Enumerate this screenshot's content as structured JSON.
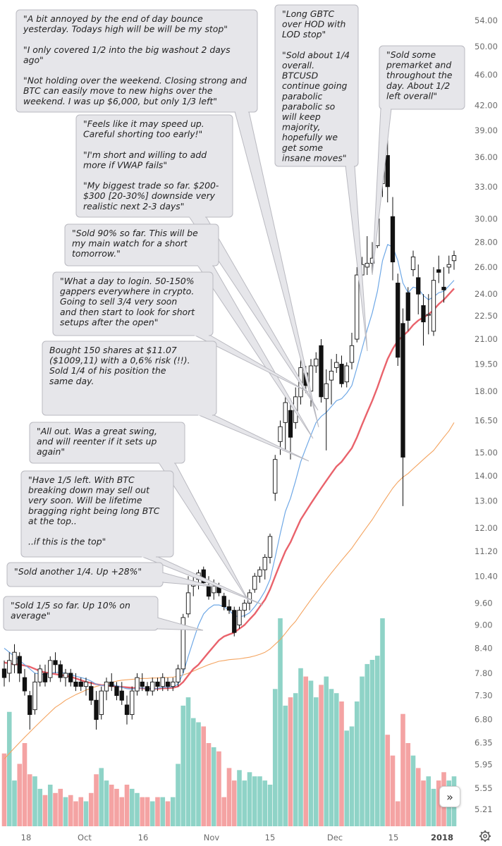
{
  "chart_data": {
    "type": "candlestick",
    "price_axis_ticks": [
      "54.00",
      "50.00",
      "46.00",
      "42.00",
      "39.00",
      "36.00",
      "33.00",
      "30.00",
      "28.00",
      "26.00",
      "24.00",
      "22.50",
      "21.00",
      "19.50",
      "18.00",
      "16.50",
      "15.00",
      "14.00",
      "13.00",
      "12.00",
      "11.20",
      "10.40",
      "9.60",
      "9.00",
      "8.40",
      "7.80",
      "7.30",
      "6.80",
      "6.35",
      "5.95",
      "5.55",
      "5.21"
    ],
    "time_axis_labels": [
      {
        "label": "18",
        "bold": false
      },
      {
        "label": "Oct",
        "bold": false
      },
      {
        "label": "16",
        "bold": false
      },
      {
        "label": "Nov",
        "bold": false
      },
      {
        "label": "15",
        "bold": false
      },
      {
        "label": "Dec",
        "bold": false
      },
      {
        "label": "15",
        "bold": false
      },
      {
        "label": "2018",
        "bold": true
      }
    ],
    "log_scale": true,
    "candles": [
      {
        "o": 7.9,
        "h": 8.1,
        "l": 7.5,
        "c": 7.7
      },
      {
        "o": 7.8,
        "h": 8.3,
        "l": 7.6,
        "c": 8.1
      },
      {
        "o": 8.0,
        "h": 8.5,
        "l": 7.8,
        "c": 8.3
      },
      {
        "o": 8.2,
        "h": 8.3,
        "l": 7.6,
        "c": 7.8
      },
      {
        "o": 7.7,
        "h": 7.9,
        "l": 7.3,
        "c": 7.4
      },
      {
        "o": 7.3,
        "h": 7.4,
        "l": 6.6,
        "c": 6.9
      },
      {
        "o": 7.0,
        "h": 7.8,
        "l": 6.9,
        "c": 7.6
      },
      {
        "o": 7.6,
        "h": 8.0,
        "l": 7.5,
        "c": 7.9
      },
      {
        "o": 7.8,
        "h": 8.0,
        "l": 7.5,
        "c": 7.6
      },
      {
        "o": 7.7,
        "h": 8.2,
        "l": 7.6,
        "c": 8.1
      },
      {
        "o": 8.1,
        "h": 8.3,
        "l": 7.8,
        "c": 8.0
      },
      {
        "o": 8.0,
        "h": 8.1,
        "l": 7.6,
        "c": 7.7
      },
      {
        "o": 7.7,
        "h": 7.9,
        "l": 7.5,
        "c": 7.8
      },
      {
        "o": 7.8,
        "h": 7.9,
        "l": 7.5,
        "c": 7.6
      },
      {
        "o": 7.6,
        "h": 7.8,
        "l": 7.4,
        "c": 7.5
      },
      {
        "o": 7.6,
        "h": 7.7,
        "l": 7.4,
        "c": 7.5
      },
      {
        "o": 7.5,
        "h": 7.7,
        "l": 7.3,
        "c": 7.6
      },
      {
        "o": 7.5,
        "h": 7.6,
        "l": 7.1,
        "c": 7.2
      },
      {
        "o": 7.2,
        "h": 7.4,
        "l": 6.6,
        "c": 6.8
      },
      {
        "o": 6.9,
        "h": 7.5,
        "l": 6.8,
        "c": 7.4
      },
      {
        "o": 7.4,
        "h": 7.7,
        "l": 7.2,
        "c": 7.6
      },
      {
        "o": 7.6,
        "h": 7.8,
        "l": 7.4,
        "c": 7.5
      },
      {
        "o": 7.5,
        "h": 7.6,
        "l": 7.2,
        "c": 7.3
      },
      {
        "o": 7.4,
        "h": 7.6,
        "l": 7.1,
        "c": 7.2
      },
      {
        "o": 7.1,
        "h": 7.3,
        "l": 6.7,
        "c": 6.9
      },
      {
        "o": 6.9,
        "h": 7.5,
        "l": 6.8,
        "c": 7.4
      },
      {
        "o": 7.4,
        "h": 7.8,
        "l": 7.3,
        "c": 7.7
      },
      {
        "o": 7.6,
        "h": 7.8,
        "l": 7.4,
        "c": 7.5
      },
      {
        "o": 7.5,
        "h": 7.6,
        "l": 7.3,
        "c": 7.4
      },
      {
        "o": 7.4,
        "h": 7.7,
        "l": 7.3,
        "c": 7.6
      },
      {
        "o": 7.6,
        "h": 7.7,
        "l": 7.4,
        "c": 7.5
      },
      {
        "o": 7.5,
        "h": 7.8,
        "l": 7.4,
        "c": 7.7
      },
      {
        "o": 7.6,
        "h": 7.7,
        "l": 7.4,
        "c": 7.5
      },
      {
        "o": 7.5,
        "h": 7.7,
        "l": 7.4,
        "c": 7.6
      },
      {
        "o": 7.6,
        "h": 8.0,
        "l": 7.5,
        "c": 7.9
      },
      {
        "o": 7.9,
        "h": 9.3,
        "l": 7.8,
        "c": 9.2
      },
      {
        "o": 9.3,
        "h": 10.4,
        "l": 9.2,
        "c": 9.9
      },
      {
        "o": 10.1,
        "h": 10.4,
        "l": 9.8,
        "c": 10.2
      },
      {
        "o": 10.3,
        "h": 10.6,
        "l": 10.0,
        "c": 10.5
      },
      {
        "o": 10.6,
        "h": 10.7,
        "l": 10.1,
        "c": 10.2
      },
      {
        "o": 10.1,
        "h": 10.4,
        "l": 9.7,
        "c": 9.8
      },
      {
        "o": 9.9,
        "h": 10.3,
        "l": 9.7,
        "c": 10.1
      },
      {
        "o": 10.1,
        "h": 10.2,
        "l": 9.8,
        "c": 9.9
      },
      {
        "o": 9.8,
        "h": 9.9,
        "l": 9.4,
        "c": 9.5
      },
      {
        "o": 9.5,
        "h": 9.7,
        "l": 9.3,
        "c": 9.4
      },
      {
        "o": 9.4,
        "h": 9.5,
        "l": 8.7,
        "c": 8.8
      },
      {
        "o": 9.0,
        "h": 9.5,
        "l": 8.9,
        "c": 9.4
      },
      {
        "o": 9.4,
        "h": 9.7,
        "l": 9.2,
        "c": 9.6
      },
      {
        "o": 9.6,
        "h": 10.0,
        "l": 9.4,
        "c": 9.9
      },
      {
        "o": 10.0,
        "h": 10.5,
        "l": 9.9,
        "c": 10.4
      },
      {
        "o": 10.4,
        "h": 10.7,
        "l": 10.2,
        "c": 10.6
      },
      {
        "o": 10.6,
        "h": 11.1,
        "l": 10.3,
        "c": 11.0
      },
      {
        "o": 11.0,
        "h": 11.8,
        "l": 10.8,
        "c": 11.7
      },
      {
        "o": 13.3,
        "h": 14.9,
        "l": 13.0,
        "c": 14.7
      },
      {
        "o": 15.5,
        "h": 16.5,
        "l": 14.9,
        "c": 16.2
      },
      {
        "o": 16.4,
        "h": 18.0,
        "l": 15.1,
        "c": 17.4
      },
      {
        "o": 17.0,
        "h": 17.6,
        "l": 14.7,
        "c": 15.7
      },
      {
        "o": 16.4,
        "h": 18.2,
        "l": 16.1,
        "c": 17.7
      },
      {
        "o": 17.7,
        "h": 19.8,
        "l": 17.3,
        "c": 19.3
      },
      {
        "o": 19.0,
        "h": 19.4,
        "l": 17.9,
        "c": 18.3
      },
      {
        "o": 18.0,
        "h": 19.8,
        "l": 17.2,
        "c": 19.4
      },
      {
        "o": 19.4,
        "h": 20.2,
        "l": 19.0,
        "c": 19.8
      },
      {
        "o": 20.6,
        "h": 21.0,
        "l": 17.4,
        "c": 17.7
      },
      {
        "o": 17.6,
        "h": 19.2,
        "l": 15.1,
        "c": 18.4
      },
      {
        "o": 18.6,
        "h": 19.8,
        "l": 17.3,
        "c": 19.1
      },
      {
        "o": 19.3,
        "h": 20.1,
        "l": 19.0,
        "c": 19.6
      },
      {
        "o": 19.5,
        "h": 20.0,
        "l": 18.2,
        "c": 18.4
      },
      {
        "o": 18.5,
        "h": 19.6,
        "l": 18.2,
        "c": 19.4
      },
      {
        "o": 19.6,
        "h": 21.4,
        "l": 19.2,
        "c": 20.6
      },
      {
        "o": 21.0,
        "h": 26.0,
        "l": 20.8,
        "c": 25.4
      },
      {
        "o": 25.4,
        "h": 26.8,
        "l": 23.5,
        "c": 26.2
      },
      {
        "o": 26.0,
        "h": 28.5,
        "l": 25.4,
        "c": 26.3
      },
      {
        "o": 26.3,
        "h": 28.0,
        "l": 25.5,
        "c": 26.7
      },
      {
        "o": 27.7,
        "h": 31.0,
        "l": 27.5,
        "c": 30.0
      },
      {
        "o": 33.3,
        "h": 38.5,
        "l": 32.0,
        "c": 37.8
      },
      {
        "o": 36.2,
        "h": 39.5,
        "l": 31.5,
        "c": 33.0
      },
      {
        "o": 30.2,
        "h": 32.0,
        "l": 25.0,
        "c": 26.4
      },
      {
        "o": 24.8,
        "h": 25.5,
        "l": 19.4,
        "c": 19.9
      },
      {
        "o": 22.0,
        "h": 23.0,
        "l": 12.8,
        "c": 14.8
      },
      {
        "o": 24.1,
        "h": 24.5,
        "l": 21.5,
        "c": 22.2
      },
      {
        "o": 25.8,
        "h": 27.3,
        "l": 25.3,
        "c": 26.8
      },
      {
        "o": 25.2,
        "h": 26.2,
        "l": 22.6,
        "c": 24.0
      },
      {
        "o": 23.2,
        "h": 24.0,
        "l": 20.6,
        "c": 22.1
      },
      {
        "o": 22.6,
        "h": 24.0,
        "l": 21.3,
        "c": 22.6
      },
      {
        "o": 21.5,
        "h": 26.0,
        "l": 21.2,
        "c": 25.0
      },
      {
        "o": 25.8,
        "h": 26.9,
        "l": 24.8,
        "c": 25.6
      },
      {
        "o": 24.5,
        "h": 26.0,
        "l": 23.4,
        "c": 24.3
      },
      {
        "o": 26.0,
        "h": 26.9,
        "l": 25.5,
        "c": 26.2
      },
      {
        "o": 26.5,
        "h": 27.3,
        "l": 25.8,
        "c": 26.9
      }
    ],
    "ema_blue": [
      8.4,
      8.3,
      8.2,
      8.1,
      8.0,
      7.9,
      7.8,
      7.78,
      7.77,
      7.8,
      7.82,
      7.82,
      7.8,
      7.77,
      7.73,
      7.7,
      7.67,
      7.62,
      7.55,
      7.52,
      7.53,
      7.54,
      7.52,
      7.48,
      7.45,
      7.44,
      7.46,
      7.47,
      7.45,
      7.44,
      7.46,
      7.48,
      7.48,
      7.49,
      7.55,
      7.8,
      8.2,
      8.6,
      9.0,
      9.3,
      9.45,
      9.55,
      9.55,
      9.5,
      9.4,
      9.25,
      9.22,
      9.25,
      9.33,
      9.5,
      9.7,
      9.95,
      10.3,
      11.0,
      11.8,
      12.6,
      13.1,
      13.8,
      14.6,
      15.2,
      15.8,
      16.4,
      16.7,
      16.9,
      17.2,
      17.5,
      17.6,
      17.9,
      18.3,
      19.3,
      20.4,
      21.6,
      22.7,
      24.2,
      26.5,
      27.8,
      27.6,
      26.5,
      24.8,
      24.1,
      24.5,
      24.4,
      23.9,
      23.6,
      23.8,
      24.1,
      24.2,
      24.6,
      25.0
    ],
    "sma_red": [
      8.05,
      8.03,
      8.01,
      8.0,
      7.98,
      7.95,
      7.9,
      7.85,
      7.82,
      7.8,
      7.78,
      7.76,
      7.74,
      7.72,
      7.68,
      7.64,
      7.6,
      7.58,
      7.55,
      7.53,
      7.52,
      7.51,
      7.5,
      7.49,
      7.48,
      7.47,
      7.46,
      7.46,
      7.45,
      7.45,
      7.45,
      7.46,
      7.46,
      7.47,
      7.5,
      7.6,
      7.75,
      7.9,
      8.0,
      8.15,
      8.3,
      8.45,
      8.6,
      8.7,
      8.75,
      8.8,
      8.9,
      9.0,
      9.15,
      9.3,
      9.5,
      9.7,
      10.0,
      10.4,
      10.8,
      11.2,
      11.5,
      11.9,
      12.3,
      12.6,
      12.9,
      13.2,
      13.5,
      13.8,
      14.1,
      14.4,
      14.6,
      14.9,
      15.2,
      15.7,
      16.3,
      16.9,
      17.5,
      18.2,
      19.0,
      19.8,
      20.4,
      20.9,
      21.2,
      21.5,
      21.9,
      22.2,
      22.4,
      22.6,
      22.9,
      23.3,
      23.6,
      24.0,
      24.4
    ],
    "sma_orange": [
      6.05,
      6.15,
      6.25,
      6.35,
      6.45,
      6.55,
      6.65,
      6.75,
      6.85,
      6.95,
      7.05,
      7.12,
      7.2,
      7.26,
      7.32,
      7.37,
      7.42,
      7.46,
      7.5,
      7.53,
      7.56,
      7.59,
      7.62,
      7.64,
      7.65,
      7.66,
      7.67,
      7.68,
      7.68,
      7.69,
      7.69,
      7.7,
      7.7,
      7.71,
      7.73,
      7.76,
      7.8,
      7.85,
      7.9,
      7.95,
      8.0,
      8.04,
      8.08,
      8.1,
      8.12,
      8.13,
      8.14,
      8.16,
      8.18,
      8.21,
      8.25,
      8.3,
      8.38,
      8.5,
      8.62,
      8.78,
      8.95,
      9.1,
      9.3,
      9.5,
      9.7,
      9.9,
      10.1,
      10.3,
      10.5,
      10.7,
      10.9,
      11.1,
      11.3,
      11.55,
      11.8,
      12.05,
      12.3,
      12.6,
      12.9,
      13.2,
      13.5,
      13.75,
      13.95,
      14.1,
      14.3,
      14.5,
      14.7,
      14.9,
      15.1,
      15.4,
      15.7,
      16.0,
      16.4
    ],
    "volume": [
      35,
      55,
      22,
      30,
      40,
      25,
      24,
      18,
      15,
      20,
      16,
      18,
      14,
      15,
      12,
      14,
      12,
      16,
      25,
      28,
      22,
      20,
      18,
      14,
      20,
      18,
      16,
      14,
      14,
      12,
      14,
      14,
      12,
      14,
      30,
      58,
      62,
      52,
      50,
      48,
      40,
      38,
      36,
      14,
      28,
      22,
      27,
      22,
      26,
      24,
      24,
      22,
      20,
      66,
      100,
      58,
      62,
      64,
      76,
      72,
      70,
      62,
      68,
      72,
      66,
      64,
      60,
      46,
      48,
      60,
      72,
      78,
      80,
      82,
      100,
      44,
      34,
      12,
      54,
      40,
      34,
      28,
      22,
      24,
      18,
      22,
      26,
      22,
      24
    ]
  },
  "annotations": [
    {
      "id": "b1",
      "lines": [
        "\"A bit annoyed by the end of day bounce",
        "yesterday. Todays high will be will be my stop\"",
        "",
        "\"I only covered 1/2 into the big washout 2 days",
        "ago\"",
        "",
        "\"Not holding over the weekend. Closing strong and",
        "BTC can easily move to new highs over the",
        "weekend. I was up $6,000, but only 1/3 left\""
      ]
    },
    {
      "id": "b2",
      "lines": [
        "\"Long GBTC",
        "over HOD with",
        "LOD stop\"",
        "",
        "\"Sold about 1/4",
        "overall.",
        "BTCUSD",
        "continue going",
        "parabolic",
        "parabolic so",
        "will keep",
        "majority,",
        "hopefully we",
        "get some",
        "insane moves\""
      ]
    },
    {
      "id": "b3",
      "lines": [
        "\"Sold some",
        "premarket and",
        "throughout the",
        "day. About 1/2",
        "left overall\""
      ]
    },
    {
      "id": "b4",
      "lines": [
        "\"Feels like it may speed up.",
        "Careful shorting too early!\"",
        "",
        "\"I'm short and willing to add",
        "more if VWAP fails\"",
        "",
        "\"My biggest trade so far. $200-",
        "$300 [20-30%] downside very",
        "realistic next 2-3 days\""
      ]
    },
    {
      "id": "b5",
      "lines": [
        "\"Sold 90% so far. This will be",
        "my main watch for a short",
        "tomorrow.\""
      ]
    },
    {
      "id": "b6",
      "lines": [
        "\"What a day to login. 50-150%",
        "gappers everywhere in crypto.",
        "Going to sell 3/4  very  soon",
        "and then start to look for short",
        "setups after the open\""
      ]
    },
    {
      "id": "b7",
      "lines": [
        "Bought 150 shares at $11.07",
        "($1009,11) with a 0,6% risk (!!).",
        "Sold 1/4 of his position the",
        "same day."
      ]
    },
    {
      "id": "b8",
      "lines": [
        "\"All out. Was a great swing,",
        "and will reenter if it sets up",
        "again\""
      ]
    },
    {
      "id": "b9",
      "lines": [
        "\"Have 1/5 left. With  BTC",
        "breaking down may sell out",
        "very soon. Will be lifetime",
        "bragging right being long BTC",
        "at the top..",
        "",
        "..if this is the top\""
      ]
    },
    {
      "id": "b10",
      "lines": [
        "\"Sold another 1/4. Up +28%\""
      ]
    },
    {
      "id": "b11",
      "lines": [
        "\"Sold 1/5 so far. Up 10% on",
        "average\""
      ]
    }
  ],
  "colors": {
    "up_volume": "#8fd3c7",
    "down_volume": "#f4a3a3",
    "ema_blue": "#6fa8e6",
    "sma_red": "#e9626b",
    "sma_orange": "#f4a460",
    "bubble_fill": "#e6e6ea",
    "bubble_stroke": "#b9b9c0"
  },
  "nav_button": {
    "glyph": "»"
  }
}
